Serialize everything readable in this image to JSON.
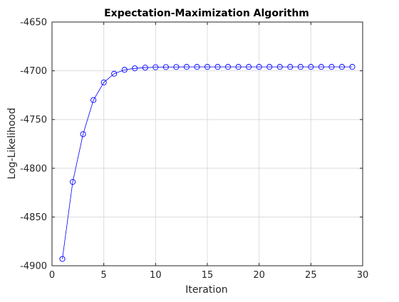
{
  "chart_data": {
    "type": "line",
    "title": "Expectation-Maximization Algorithm",
    "xlabel": "Iteration",
    "ylabel": "Log-Likelihood",
    "xlim": [
      0,
      30
    ],
    "ylim": [
      -4900,
      -4650
    ],
    "xticks": [
      0,
      5,
      10,
      15,
      20,
      25,
      30
    ],
    "yticks": [
      -4900,
      -4850,
      -4800,
      -4750,
      -4700,
      -4650
    ],
    "xtick_labels": [
      "0",
      "5",
      "10",
      "15",
      "20",
      "25",
      "30"
    ],
    "ytick_labels": [
      "-4900",
      "-4850",
      "-4800",
      "-4750",
      "-4700",
      "-4650"
    ],
    "grid": true,
    "marker": "circle",
    "line_color": "#0000ff",
    "marker_color": "#0000ff",
    "series": [
      {
        "x": [
          1,
          2,
          3,
          4,
          5,
          6,
          7,
          8,
          9,
          10,
          11,
          12,
          13,
          14,
          15,
          16,
          17,
          18,
          19,
          20,
          21,
          22,
          23,
          24,
          25,
          26,
          27,
          28,
          29
        ],
        "values": [
          -4893,
          -4814,
          -4765,
          -4730,
          -4712,
          -4703,
          -4699,
          -4697.5,
          -4696.8,
          -4696.4,
          -4696.2,
          -4696.1,
          -4696,
          -4696,
          -4696,
          -4696,
          -4696,
          -4696,
          -4696,
          -4696,
          -4696,
          -4696,
          -4696,
          -4696,
          -4696,
          -4696,
          -4696,
          -4696,
          -4696
        ]
      }
    ]
  }
}
